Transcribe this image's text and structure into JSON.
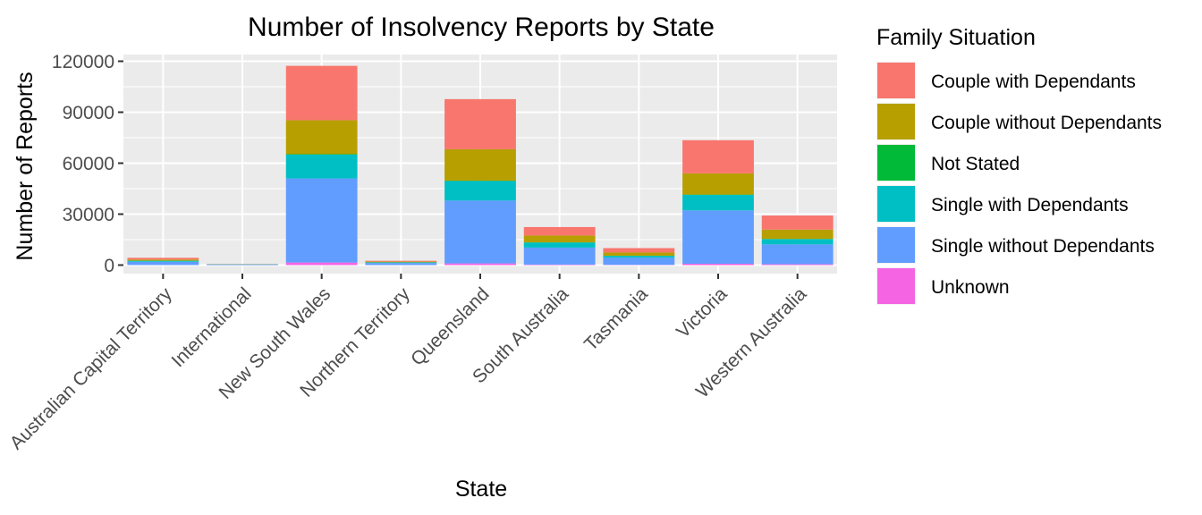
{
  "chart_data": {
    "type": "bar",
    "stacked": true,
    "title": "Number of Insolvency Reports by State",
    "xlabel": "State",
    "ylabel": "Number of Reports",
    "ylim": [
      0,
      122000
    ],
    "yticks": [
      0,
      30000,
      60000,
      90000,
      120000
    ],
    "ytick_labels": [
      "0",
      "30000",
      "60000",
      "90000",
      "120000"
    ],
    "grid": true,
    "legend_position": "right",
    "legend_title": "Family Situation",
    "categories": [
      "Australian Capital Territory",
      "International",
      "New South Wales",
      "Northern Territory",
      "Queensland",
      "South Australia",
      "Tasmania",
      "Victoria",
      "Western Australia"
    ],
    "series": [
      {
        "name": "Unknown",
        "color": "#F564E3",
        "values": [
          50,
          10,
          1500,
          30,
          1000,
          300,
          150,
          800,
          500
        ]
      },
      {
        "name": "Single without Dependants",
        "color": "#619CFF",
        "values": [
          1900,
          400,
          49500,
          1200,
          37000,
          10000,
          4200,
          31400,
          11700
        ]
      },
      {
        "name": "Single with Dependants",
        "color": "#00BFC4",
        "values": [
          600,
          100,
          14000,
          400,
          11500,
          3000,
          1100,
          9100,
          3100
        ]
      },
      {
        "name": "Not Stated",
        "color": "#00BA38",
        "values": [
          50,
          10,
          300,
          30,
          200,
          100,
          50,
          200,
          100
        ]
      },
      {
        "name": "Couple without Dependants",
        "color": "#B79F00",
        "values": [
          700,
          100,
          20000,
          400,
          18500,
          4000,
          1900,
          12500,
          5500
        ]
      },
      {
        "name": "Couple with Dependants",
        "color": "#F8766D",
        "values": [
          1000,
          80,
          32000,
          500,
          29500,
          5000,
          2600,
          19500,
          8300
        ]
      }
    ],
    "legend_order": [
      "Couple with Dependants",
      "Couple without Dependants",
      "Not Stated",
      "Single with Dependants",
      "Single without Dependants",
      "Unknown"
    ]
  }
}
